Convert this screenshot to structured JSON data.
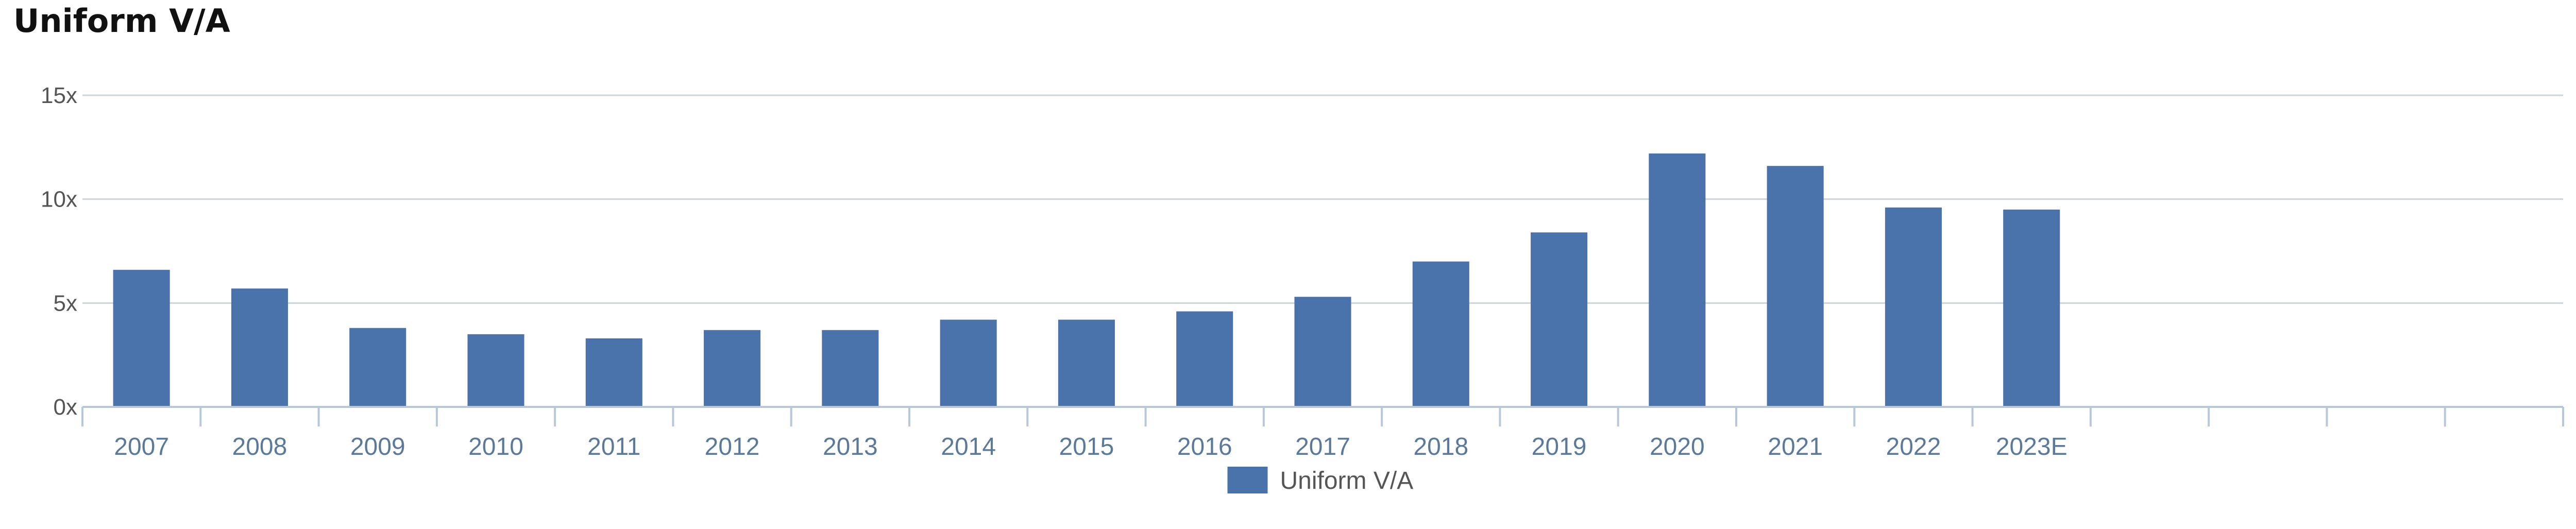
{
  "title": "Uniform V/A",
  "chart_data": {
    "type": "bar",
    "title": "Uniform V/A",
    "xlabel": "",
    "ylabel": "",
    "categories": [
      "2007",
      "2008",
      "2009",
      "2010",
      "2011",
      "2012",
      "2013",
      "2014",
      "2015",
      "2016",
      "2017",
      "2018",
      "2019",
      "2020",
      "2021",
      "2022",
      "2023E",
      "",
      "",
      "",
      ""
    ],
    "series": [
      {
        "name": "Uniform V/A",
        "color": "#4a73ab",
        "values": [
          6.6,
          5.7,
          3.8,
          3.5,
          3.3,
          3.7,
          3.7,
          4.2,
          4.2,
          4.6,
          5.3,
          7.0,
          8.4,
          12.2,
          11.6,
          9.6,
          9.5,
          null,
          null,
          null,
          null
        ]
      }
    ],
    "ylim": [
      0,
      15
    ],
    "yticks": [
      0,
      5,
      10,
      15
    ],
    "ytick_labels": [
      "0x",
      "5x",
      "10x",
      "15x"
    ],
    "grid": true,
    "legend": "bottom-center"
  }
}
